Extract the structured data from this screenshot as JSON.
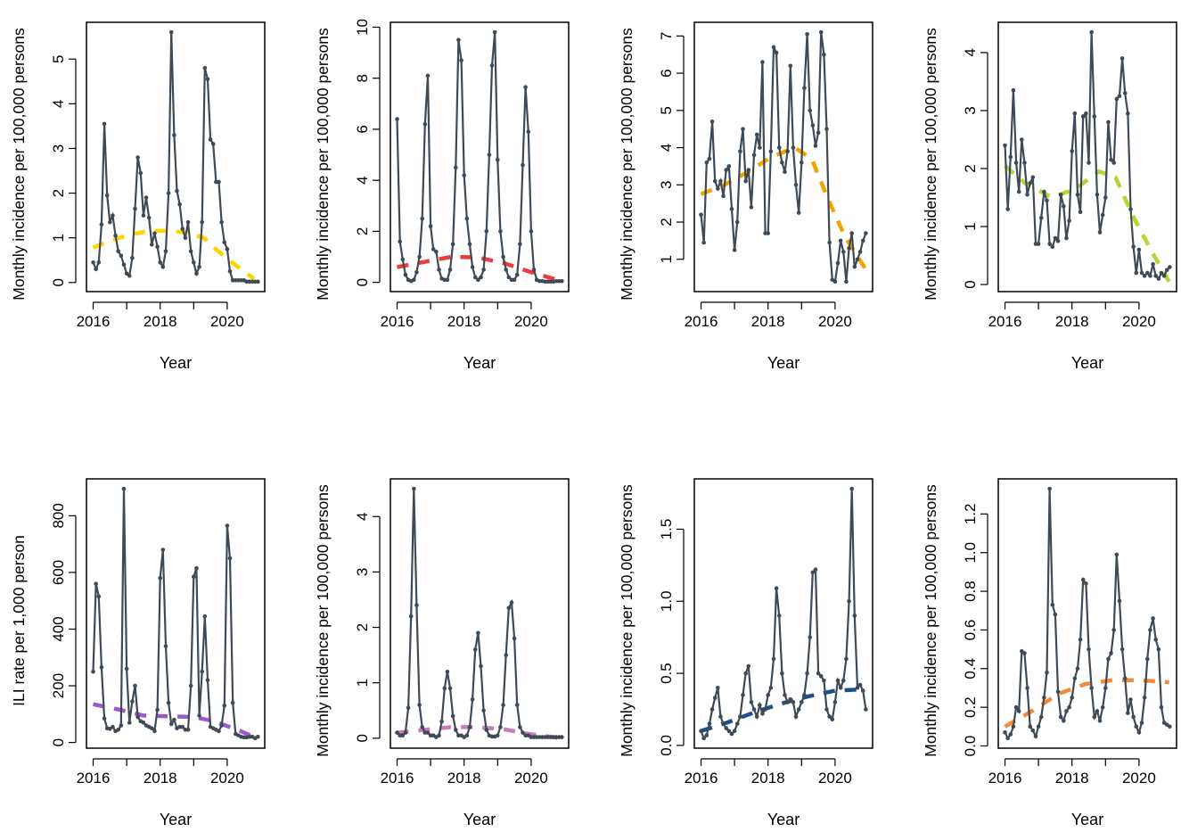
{
  "chart_data": [
    {
      "type": "line",
      "xlabel": "Year",
      "ylabel": "Monthly incidence per 100,000 persons",
      "x_start": 2016,
      "x_step_months": 1,
      "xticks": [
        2016,
        2017,
        2018,
        2019,
        2020,
        2021
      ],
      "xtick_labels": [
        "2016",
        "",
        "2018",
        "",
        "2020",
        ""
      ],
      "yticks": [
        0,
        1,
        2,
        3,
        4,
        5
      ],
      "ytick_labels": [
        "0",
        "1",
        "2",
        "3",
        "4",
        "5"
      ],
      "trend_color": "#FFD500",
      "values": [
        0.45,
        0.3,
        0.45,
        1.3,
        3.55,
        1.95,
        1.35,
        1.5,
        1.05,
        0.7,
        0.6,
        0.4,
        0.2,
        0.15,
        0.55,
        1.65,
        2.8,
        2.45,
        1.5,
        1.9,
        1.45,
        0.85,
        1.1,
        0.8,
        0.45,
        0.35,
        0.7,
        2.0,
        5.6,
        3.3,
        2.05,
        1.75,
        1.2,
        1.0,
        1.35,
        0.7,
        0.45,
        0.2,
        0.35,
        1.35,
        4.8,
        4.55,
        3.2,
        3.1,
        2.25,
        2.25,
        1.35,
        0.9,
        0.75,
        0.25,
        0.05,
        0.05,
        0.05,
        0.05,
        0.05,
        0.02,
        0.02,
        0.02,
        0.02,
        0.02
      ],
      "trend": [
        [
          2016,
          0.78
        ],
        [
          2016.5,
          0.93
        ],
        [
          2017,
          1.05
        ],
        [
          2017.6,
          1.15
        ],
        [
          2018.2,
          1.16
        ],
        [
          2018.8,
          1.12
        ],
        [
          2019.3,
          1.0
        ],
        [
          2019.7,
          0.72
        ],
        [
          2020.2,
          0.42
        ],
        [
          2020.8,
          0.08
        ]
      ]
    },
    {
      "type": "line",
      "xlabel": "Year",
      "ylabel": "Monthly incidence per 100,000 persons",
      "x_start": 2016,
      "x_step_months": 1,
      "xticks": [
        2016,
        2017,
        2018,
        2019,
        2020,
        2021
      ],
      "xtick_labels": [
        "2016",
        "",
        "2018",
        "",
        "2020",
        ""
      ],
      "yticks": [
        0,
        2,
        4,
        6,
        8,
        10
      ],
      "ytick_labels": [
        "0",
        "2",
        "4",
        "6",
        "8",
        "10"
      ],
      "trend_color": "#EE3B3B",
      "values": [
        6.4,
        1.6,
        0.9,
        0.3,
        0.1,
        0.05,
        0.1,
        0.4,
        1.0,
        2.5,
        6.2,
        8.1,
        2.2,
        1.3,
        1.2,
        0.5,
        0.15,
        0.1,
        0.1,
        0.5,
        1.5,
        4.5,
        9.5,
        8.7,
        4.2,
        2.5,
        1.5,
        0.6,
        0.2,
        0.1,
        0.2,
        0.5,
        2.0,
        5.0,
        8.5,
        9.8,
        4.8,
        2.0,
        1.0,
        0.5,
        0.2,
        0.1,
        0.1,
        0.3,
        1.5,
        4.6,
        7.65,
        5.9,
        2.0,
        0.5,
        0.1,
        0.05,
        0.05,
        0.03,
        0.03,
        0.03,
        0.03,
        0.05,
        0.05,
        0.05
      ],
      "trend": [
        [
          2016,
          0.6
        ],
        [
          2016.8,
          0.8
        ],
        [
          2017.6,
          1.0
        ],
        [
          2018.4,
          0.98
        ],
        [
          2019.2,
          0.75
        ],
        [
          2020,
          0.4
        ],
        [
          2020.9,
          0.05
        ]
      ]
    },
    {
      "type": "line",
      "xlabel": "Year",
      "ylabel": "Monthly incidence per 100,000 persons",
      "x_start": 2016,
      "x_step_months": 1,
      "xticks": [
        2016,
        2017,
        2018,
        2019,
        2020,
        2021
      ],
      "xtick_labels": [
        "2016",
        "",
        "2018",
        "",
        "2020",
        ""
      ],
      "yticks": [
        1,
        2,
        3,
        4,
        5,
        6,
        7
      ],
      "ytick_labels": [
        "1",
        "2",
        "3",
        "4",
        "5",
        "6",
        "7"
      ],
      "trend_color": "#F5A300",
      "values": [
        2.2,
        1.45,
        3.6,
        3.7,
        4.7,
        3.1,
        2.9,
        3.1,
        2.7,
        3.4,
        3.5,
        2.35,
        1.25,
        2.0,
        3.9,
        4.5,
        3.1,
        3.4,
        2.4,
        3.8,
        4.35,
        4.0,
        6.3,
        1.7,
        1.7,
        3.9,
        6.7,
        6.55,
        4.0,
        3.6,
        3.35,
        3.9,
        6.2,
        4.0,
        3.0,
        2.25,
        3.6,
        5.6,
        7.05,
        5.0,
        4.6,
        4.05,
        4.4,
        7.1,
        6.5,
        4.5,
        1.45,
        0.45,
        0.4,
        0.9,
        1.5,
        1.2,
        0.4,
        1.3,
        1.7,
        0.8,
        1.0,
        1.2,
        1.5,
        1.7
      ],
      "trend": [
        [
          2016,
          2.75
        ],
        [
          2016.7,
          3.0
        ],
        [
          2017.4,
          3.35
        ],
        [
          2018.1,
          3.75
        ],
        [
          2018.8,
          4.0
        ],
        [
          2019.3,
          3.7
        ],
        [
          2019.8,
          2.6
        ],
        [
          2020.3,
          1.6
        ],
        [
          2020.9,
          0.75
        ]
      ]
    },
    {
      "type": "line",
      "xlabel": "Year",
      "ylabel": "Monthly incidence per 100,000 persons",
      "x_start": 2016,
      "x_step_months": 1,
      "xticks": [
        2016,
        2017,
        2018,
        2019,
        2020,
        2021
      ],
      "xtick_labels": [
        "2016",
        "",
        "2018",
        "",
        "2020",
        ""
      ],
      "yticks": [
        0,
        1,
        2,
        3,
        4
      ],
      "ytick_labels": [
        "0",
        "1",
        "2",
        "3",
        "4"
      ],
      "trend_color": "#B8D435",
      "values": [
        2.4,
        1.3,
        2.2,
        3.35,
        2.1,
        1.6,
        2.5,
        2.1,
        1.55,
        1.75,
        1.85,
        0.7,
        0.7,
        1.15,
        1.6,
        1.45,
        0.7,
        0.65,
        0.8,
        0.75,
        1.55,
        1.35,
        0.8,
        1.1,
        2.3,
        2.95,
        1.55,
        1.25,
        2.9,
        2.95,
        2.1,
        4.35,
        2.9,
        1.55,
        0.9,
        1.2,
        1.5,
        2.8,
        2.15,
        2.1,
        3.2,
        3.25,
        3.9,
        3.3,
        2.95,
        1.3,
        0.65,
        0.2,
        0.6,
        0.2,
        0.15,
        0.2,
        0.15,
        0.35,
        0.15,
        0.1,
        0.2,
        0.15,
        0.25,
        0.3
      ],
      "trend": [
        [
          2016,
          2.05
        ],
        [
          2016.6,
          1.75
        ],
        [
          2017.4,
          1.5
        ],
        [
          2018.1,
          1.65
        ],
        [
          2018.8,
          1.95
        ],
        [
          2019.3,
          1.85
        ],
        [
          2019.8,
          1.2
        ],
        [
          2020.4,
          0.55
        ],
        [
          2020.9,
          0.05
        ]
      ]
    },
    {
      "type": "line",
      "xlabel": "Year",
      "ylabel": "ILI rate per 1,000 person",
      "x_start": 2016,
      "x_step_months": 1,
      "xticks": [
        2016,
        2017,
        2018,
        2019,
        2020,
        2021
      ],
      "xtick_labels": [
        "2016",
        "",
        "2018",
        "",
        "2020",
        ""
      ],
      "yticks": [
        0,
        200,
        400,
        600,
        800
      ],
      "ytick_labels": [
        "0",
        "200",
        "400",
        "600",
        "800"
      ],
      "trend_color": "#9B59D0",
      "values": [
        250,
        560,
        515,
        265,
        85,
        50,
        48,
        55,
        40,
        45,
        60,
        895,
        260,
        70,
        145,
        200,
        90,
        75,
        70,
        60,
        55,
        50,
        40,
        115,
        580,
        680,
        340,
        140,
        65,
        80,
        50,
        55,
        55,
        45,
        45,
        200,
        585,
        615,
        95,
        250,
        445,
        220,
        55,
        50,
        45,
        40,
        60,
        130,
        765,
        650,
        140,
        30,
        25,
        20,
        18,
        18,
        20,
        20,
        15,
        20
      ],
      "trend": [
        [
          2016,
          135
        ],
        [
          2016.8,
          115
        ],
        [
          2017.5,
          95
        ],
        [
          2018.3,
          92
        ],
        [
          2019,
          90
        ],
        [
          2019.6,
          75
        ],
        [
          2020.3,
          45
        ],
        [
          2020.9,
          15
        ]
      ]
    },
    {
      "type": "line",
      "xlabel": "Year",
      "ylabel": "Monthly incidence per 100,000 persons",
      "x_start": 2016,
      "x_step_months": 1,
      "xticks": [
        2016,
        2017,
        2018,
        2019,
        2020,
        2021
      ],
      "xtick_labels": [
        "2016",
        "",
        "2018",
        "",
        "2020",
        ""
      ],
      "yticks": [
        0,
        1,
        2,
        3,
        4
      ],
      "ytick_labels": [
        "0",
        "1",
        "2",
        "3",
        "4"
      ],
      "trend_color": "#C77BC0",
      "values": [
        0.1,
        0.05,
        0.05,
        0.1,
        0.55,
        2.2,
        4.5,
        2.4,
        0.6,
        0.2,
        0.1,
        0.1,
        0.05,
        0.05,
        0.02,
        0.05,
        0.3,
        0.9,
        1.2,
        0.9,
        0.4,
        0.15,
        0.05,
        0.05,
        0.02,
        0.05,
        0.2,
        0.7,
        1.6,
        1.9,
        1.3,
        0.5,
        0.15,
        0.05,
        0.03,
        0.03,
        0.05,
        0.2,
        0.6,
        1.5,
        2.35,
        2.45,
        1.8,
        0.6,
        0.2,
        0.1,
        0.05,
        0.05,
        0.02,
        0.02,
        0.02,
        0.02,
        0.02,
        0.02,
        0.02,
        0.02,
        0.02,
        0.02,
        0.02,
        0.02
      ],
      "trend": [
        [
          2016,
          0.1
        ],
        [
          2016.8,
          0.15
        ],
        [
          2017.6,
          0.2
        ],
        [
          2018.4,
          0.2
        ],
        [
          2019.2,
          0.16
        ],
        [
          2019.9,
          0.08
        ],
        [
          2020.9,
          0.0
        ]
      ]
    },
    {
      "type": "line",
      "xlabel": "Year",
      "ylabel": "Monthly incidence per 100,000 persons",
      "x_start": 2016,
      "x_step_months": 1,
      "xticks": [
        2016,
        2017,
        2018,
        2019,
        2020,
        2021
      ],
      "xtick_labels": [
        "2016",
        "",
        "2018",
        "",
        "2020",
        ""
      ],
      "yticks": [
        0,
        0.5,
        1.0,
        1.5
      ],
      "ytick_labels": [
        "0.0",
        "0.5",
        "1.0",
        "1.5"
      ],
      "trend_color": "#1F4E8C",
      "values": [
        0.1,
        0.05,
        0.07,
        0.15,
        0.25,
        0.33,
        0.4,
        0.2,
        0.15,
        0.12,
        0.1,
        0.08,
        0.1,
        0.15,
        0.2,
        0.35,
        0.5,
        0.55,
        0.3,
        0.25,
        0.2,
        0.28,
        0.22,
        0.25,
        0.35,
        0.4,
        0.6,
        1.09,
        0.9,
        0.5,
        0.35,
        0.3,
        0.32,
        0.3,
        0.2,
        0.25,
        0.3,
        0.35,
        0.5,
        0.75,
        1.2,
        1.22,
        0.5,
        0.48,
        0.45,
        0.25,
        0.2,
        0.18,
        0.3,
        0.45,
        0.4,
        0.45,
        0.6,
        1.0,
        1.78,
        0.9,
        0.4,
        0.42,
        0.38,
        0.25
      ],
      "trend": [
        [
          2016,
          0.1
        ],
        [
          2016.8,
          0.16
        ],
        [
          2017.6,
          0.23
        ],
        [
          2018.4,
          0.29
        ],
        [
          2019.2,
          0.34
        ],
        [
          2020,
          0.38
        ],
        [
          2020.9,
          0.39
        ]
      ]
    },
    {
      "type": "line",
      "xlabel": "Year",
      "ylabel": "Monthly incidence per 100,000 persons",
      "x_start": 2016,
      "x_step_months": 1,
      "xticks": [
        2016,
        2017,
        2018,
        2019,
        2020,
        2021
      ],
      "xtick_labels": [
        "2016",
        "",
        "2018",
        "",
        "2020",
        ""
      ],
      "yticks": [
        0,
        0.2,
        0.4,
        0.6,
        0.8,
        1.0,
        1.2
      ],
      "ytick_labels": [
        "0.0",
        "0.2",
        "0.4",
        "0.6",
        "0.8",
        "1.0",
        "1.2"
      ],
      "trend_color": "#F28C3C",
      "values": [
        0.07,
        0.04,
        0.06,
        0.1,
        0.2,
        0.18,
        0.49,
        0.48,
        0.3,
        0.1,
        0.08,
        0.05,
        0.1,
        0.15,
        0.25,
        0.38,
        1.33,
        0.73,
        0.68,
        0.28,
        0.15,
        0.13,
        0.18,
        0.2,
        0.25,
        0.35,
        0.4,
        0.55,
        0.86,
        0.84,
        0.5,
        0.3,
        0.15,
        0.18,
        0.13,
        0.2,
        0.3,
        0.45,
        0.48,
        0.6,
        0.99,
        0.75,
        0.5,
        0.35,
        0.17,
        0.24,
        0.15,
        0.1,
        0.07,
        0.12,
        0.25,
        0.45,
        0.6,
        0.66,
        0.55,
        0.5,
        0.2,
        0.12,
        0.11,
        0.1
      ],
      "trend": [
        [
          2016,
          0.1
        ],
        [
          2016.8,
          0.18
        ],
        [
          2017.6,
          0.27
        ],
        [
          2018.4,
          0.32
        ],
        [
          2019.2,
          0.34
        ],
        [
          2020,
          0.34
        ],
        [
          2020.9,
          0.33
        ]
      ]
    }
  ]
}
